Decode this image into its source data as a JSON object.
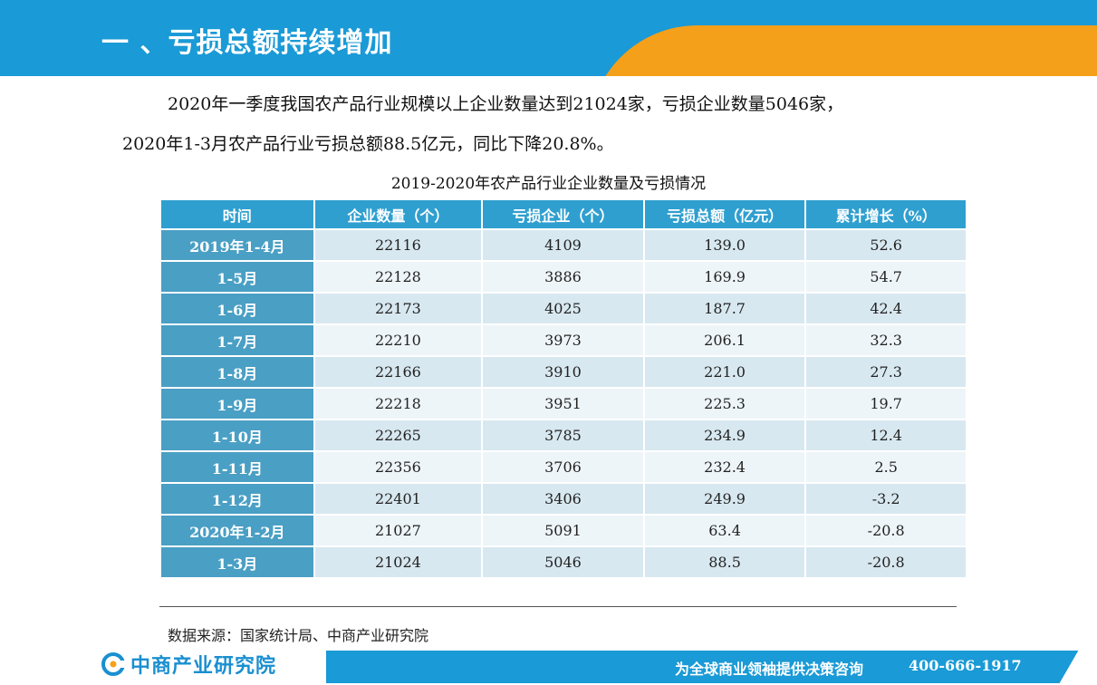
{
  "header": {
    "title": "一 、亏损总额持续增加"
  },
  "paragraph": {
    "line1": "2020年一季度我国农产品行业规模以上企业数量达到21024家，亏损企业数量5046家，",
    "line2": "2020年1-3月农产品行业亏损总额88.5亿元，同比下降20.8%。"
  },
  "table": {
    "title": "2019-2020年农产品行业企业数量及亏损情况",
    "headers": [
      "时间",
      "企业数量（个）",
      "亏损企业（个）",
      "亏损总额（亿元）",
      "累计增长（%）"
    ],
    "rows": [
      [
        "2019年1-4月",
        "22116",
        "4109",
        "139.0",
        "52.6"
      ],
      [
        "1-5月",
        "22128",
        "3886",
        "169.9",
        "54.7"
      ],
      [
        "1-6月",
        "22173",
        "4025",
        "187.7",
        "42.4"
      ],
      [
        "1-7月",
        "22210",
        "3973",
        "206.1",
        "32.3"
      ],
      [
        "1-8月",
        "22166",
        "3910",
        "221.0",
        "27.3"
      ],
      [
        "1-9月",
        "22218",
        "3951",
        "225.3",
        "19.7"
      ],
      [
        "1-10月",
        "22265",
        "3785",
        "234.9",
        "12.4"
      ],
      [
        "1-11月",
        "22356",
        "3706",
        "232.4",
        "2.5"
      ],
      [
        "1-12月",
        "22401",
        "3406",
        "249.9",
        "-3.2"
      ],
      [
        "2020年1-2月",
        "21027",
        "5091",
        "63.4",
        "-20.8"
      ],
      [
        "1-3月",
        "21024",
        "5046",
        "88.5",
        "-20.8"
      ]
    ]
  },
  "source": "数据来源：国家统计局、中商产业研究院",
  "footer": {
    "logo_text": "中商产业研究院",
    "slogan": "为全球商业领袖提供决策咨询",
    "phone": "400-666-1917"
  },
  "colors": {
    "header_blue": "#1a9ad6",
    "header_orange": "#f5a01a",
    "table_header": "#2f9fcf",
    "time_cell": "#4a9fc4",
    "row_odd": "#d8e8f0",
    "row_even": "#eef5f8"
  }
}
